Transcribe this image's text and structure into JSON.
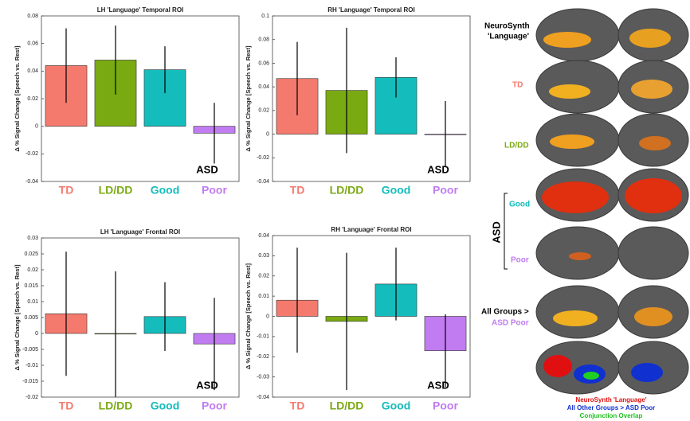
{
  "chart_data": [
    {
      "type": "bar",
      "title": "LH 'Language' Temporal ROI",
      "ylabel": "Δ % Signal Change [Speech vs. Rest]",
      "annotation": "ASD",
      "categories": [
        "TD",
        "LD/DD",
        "Good",
        "Poor"
      ],
      "colors": [
        "#f47a6e",
        "#7aaa12",
        "#14bcbc",
        "#c07cf0"
      ],
      "values": [
        0.044,
        0.048,
        0.041,
        -0.005
      ],
      "errors": [
        0.027,
        0.025,
        0.017,
        0.022
      ],
      "ylim": [
        -0.04,
        0.08
      ],
      "yticks": [
        -0.04,
        -0.02,
        0,
        0.02,
        0.04,
        0.06,
        0.08
      ]
    },
    {
      "type": "bar",
      "title": "RH 'Language' Temporal ROI",
      "ylabel": "Δ % Signal Change [Speech vs. Rest]",
      "annotation": "ASD",
      "categories": [
        "TD",
        "LD/DD",
        "Good",
        "Poor"
      ],
      "colors": [
        "#f47a6e",
        "#7aaa12",
        "#14bcbc",
        "#c07cf0"
      ],
      "values": [
        0.047,
        0.037,
        0.048,
        0
      ],
      "errors": [
        0.031,
        0.053,
        0.017,
        0.028
      ],
      "ylim": [
        -0.04,
        0.1
      ],
      "yticks": [
        -0.04,
        -0.02,
        0,
        0.02,
        0.04,
        0.06,
        0.08,
        0.1
      ]
    },
    {
      "type": "bar",
      "title": "LH 'Language' Frontal ROI",
      "ylabel": "Δ % Signal Change [Speech vs. Rest]",
      "annotation": "ASD",
      "categories": [
        "TD",
        "LD/DD",
        "Good",
        "Poor"
      ],
      "colors": [
        "#f47a6e",
        "#7aaa12",
        "#14bcbc",
        "#c07cf0"
      ],
      "values": [
        0.0062,
        -0.0002,
        0.0053,
        -0.0033
      ],
      "errors": [
        0.0195,
        0.0197,
        0.0108,
        0.0145
      ],
      "ylim": [
        -0.02,
        0.03
      ],
      "yticks": [
        -0.02,
        -0.015,
        -0.01,
        -0.005,
        0,
        0.005,
        0.01,
        0.015,
        0.02,
        0.025,
        0.03
      ]
    },
    {
      "type": "bar",
      "title": "RH 'Language' Frontal ROI",
      "ylabel": "Δ % Signal Change [Speech vs. Rest]",
      "annotation": "ASD",
      "categories": [
        "TD",
        "LD/DD",
        "Good",
        "Poor"
      ],
      "colors": [
        "#f47a6e",
        "#7aaa12",
        "#14bcbc",
        "#c07cf0"
      ],
      "values": [
        0.008,
        -0.0025,
        0.016,
        -0.017
      ],
      "errors": [
        0.026,
        0.034,
        0.018,
        0.018
      ],
      "ylim": [
        -0.04,
        0.04
      ],
      "yticks": [
        -0.04,
        -0.03,
        -0.02,
        -0.01,
        0,
        0.01,
        0.02,
        0.03,
        0.04
      ]
    }
  ],
  "brain_panel": {
    "rows": [
      "NeuroSynth",
      "'Language'",
      "TD",
      "LD/DD",
      "Good",
      "Poor",
      "All Groups >",
      "ASD Poor"
    ],
    "group": "ASD",
    "legend": [
      "NeuroSynth 'Language'",
      "All Other Groups > ASD Poor",
      "Conjunction Overlap"
    ]
  }
}
